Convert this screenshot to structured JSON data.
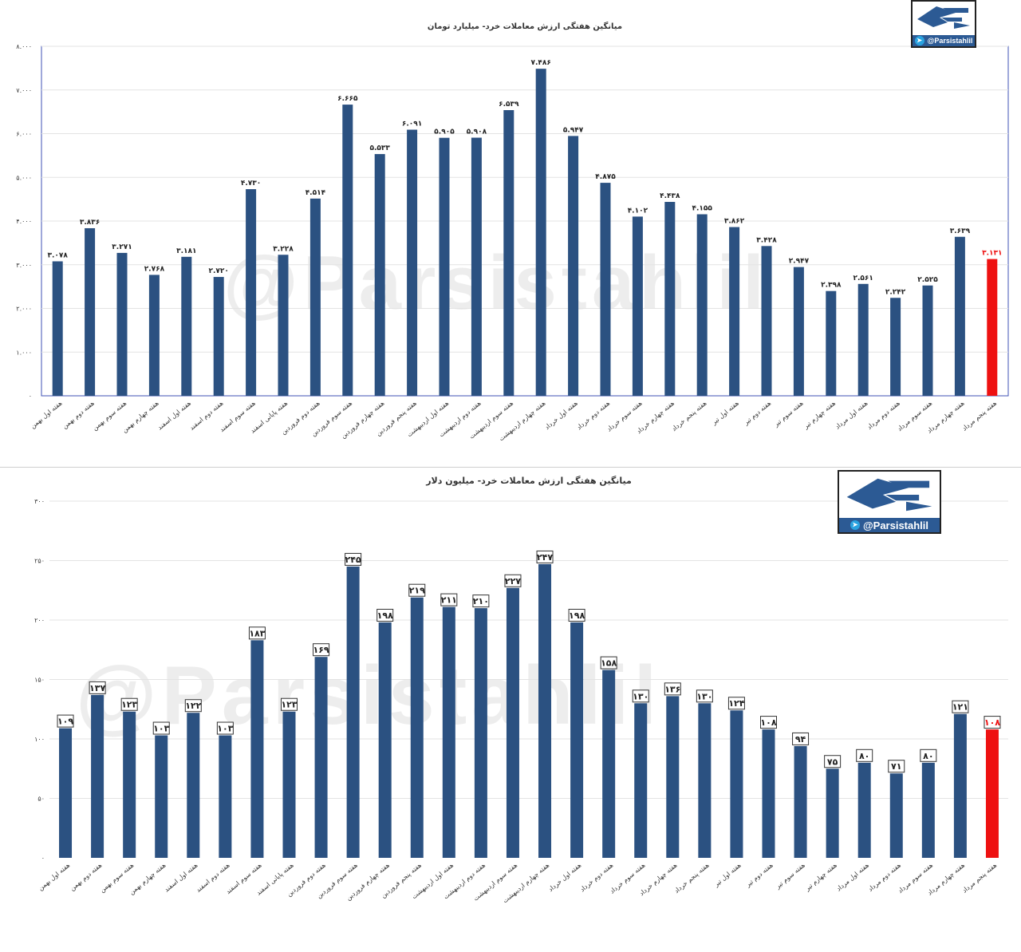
{
  "watermark": "@Parsistahlil",
  "logo": {
    "handle": "@Parsistahlil",
    "icon": "telegram-icon"
  },
  "colors": {
    "bar": "#2b5181",
    "highlight": "#ee1111",
    "grid": "#e3e3e3",
    "axis": "#3f51b5"
  },
  "chart_data": [
    {
      "type": "bar",
      "title": "میانگین هفتگی ارزش معاملات خرد- میلیارد تومان",
      "ylim": [
        0,
        8000
      ],
      "yticks": [
        0,
        1000,
        2000,
        3000,
        4000,
        5000,
        6000,
        7000,
        8000
      ],
      "ytick_labels": [
        "۰",
        "۱.۰۰۰",
        "۲.۰۰۰",
        "۳.۰۰۰",
        "۴.۰۰۰",
        "۵.۰۰۰",
        "۶.۰۰۰",
        "۷.۰۰۰",
        "۸.۰۰۰"
      ],
      "grid": true,
      "highlight_last": true,
      "categories": [
        "هفته اول بهمن",
        "هفته دوم بهمن",
        "هفته سوم بهمن",
        "هفته چهارم بهمن",
        "هفته اول اسفند",
        "هفته دوم اسفند",
        "هفته سوم اسفند",
        "هفته پایانی اسفند",
        "هفته دوم فروردین",
        "هفته سوم فروردین",
        "هفته چهارم فروردین",
        "هفته پنجم فروردین",
        "هفته اول اردیبهشت",
        "هفته دوم اردیبهشت",
        "هفته سوم اردیبهشت",
        "هفته چهارم اردیبهشت",
        "هفته اول خرداد",
        "هفته دوم خرداد",
        "هفته سوم خرداد",
        "هفته چهارم خرداد",
        "هفته پنجم خرداد",
        "هفته اول تیر",
        "هفته دوم تیر",
        "هفته سوم تیر",
        "هفته چهارم تیر",
        "هفته اول مرداد",
        "هفته دوم مرداد",
        "هفته سوم مرداد",
        "هفته چهارم مرداد",
        "هفته پنجم مرداد"
      ],
      "values": [
        3078,
        3836,
        3271,
        2768,
        3181,
        2720,
        4730,
        3228,
        4514,
        6665,
        5533,
        6091,
        5905,
        5908,
        6539,
        7486,
        5947,
        4875,
        4102,
        4438,
        4155,
        3862,
        3428,
        2947,
        2398,
        2561,
        2242,
        2525,
        3639,
        3131
      ],
      "data_labels": [
        "۳.۰۷۸",
        "۳.۸۳۶",
        "۳.۲۷۱",
        "۲.۷۶۸",
        "۳.۱۸۱",
        "۲.۷۲۰",
        "۴.۷۳۰",
        "۳.۲۲۸",
        "۴.۵۱۴",
        "۶.۶۶۵",
        "۵.۵۳۳",
        "۶.۰۹۱",
        "۵.۹۰۵",
        "۵.۹۰۸",
        "۶.۵۳۹",
        "۷.۴۸۶",
        "۵.۹۴۷",
        "۴.۸۷۵",
        "۴.۱۰۲",
        "۴.۴۳۸",
        "۴.۱۵۵",
        "۳.۸۶۲",
        "۳.۴۲۸",
        "۲.۹۴۷",
        "۲.۳۹۸",
        "۲.۵۶۱",
        "۲.۲۴۲",
        "۲.۵۲۵",
        "۳.۶۳۹",
        "۳.۱۳۱"
      ]
    },
    {
      "type": "bar",
      "title": "میانگین هفتگی ارزش معاملات خرد- میلیون دلار",
      "ylim": [
        0,
        300
      ],
      "yticks": [
        0,
        50,
        100,
        150,
        200,
        250,
        300
      ],
      "ytick_labels": [
        "۰",
        "۵۰",
        "۱۰۰",
        "۱۵۰",
        "۲۰۰",
        "۲۵۰",
        "۳۰۰"
      ],
      "grid": true,
      "highlight_last": true,
      "categories": [
        "هفته اول بهمن",
        "هفته دوم بهمن",
        "هفته سوم بهمن",
        "هفته چهارم بهمن",
        "هفته اول اسفند",
        "هفته دوم اسفند",
        "هفته سوم اسفند",
        "هفته پایانی اسفند",
        "هفته دوم فروردین",
        "هفته سوم فروردین",
        "هفته چهارم فروردین",
        "هفته پنجم فروردین",
        "هفته اول اردیبهشت",
        "هفته دوم اردیبهشت",
        "هفته سوم اردیبهشت",
        "هفته چهارم اردیبهشت",
        "هفته اول خرداد",
        "هفته دوم خرداد",
        "هفته سوم خرداد",
        "هفته چهارم خرداد",
        "هفته پنجم خرداد",
        "هفته اول تیر",
        "هفته دوم تیر",
        "هفته سوم تیر",
        "هفته چهارم تیر",
        "هفته اول مرداد",
        "هفته دوم مرداد",
        "هفته سوم مرداد",
        "هفته چهارم مرداد",
        "هفته پنجم مرداد"
      ],
      "values": [
        109,
        137,
        123,
        103,
        122,
        103,
        183,
        123,
        169,
        245,
        198,
        219,
        211,
        210,
        227,
        247,
        198,
        158,
        130,
        136,
        130,
        124,
        108,
        94,
        75,
        80,
        71,
        80,
        121,
        108
      ],
      "data_labels": [
        "۱۰۹",
        "۱۳۷",
        "۱۲۳",
        "۱۰۳",
        "۱۲۲",
        "۱۰۳",
        "۱۸۳",
        "۱۲۳",
        "۱۶۹",
        "۲۴۵",
        "۱۹۸",
        "۲۱۹",
        "۲۱۱",
        "۲۱۰",
        "۲۲۷",
        "۲۴۷",
        "۱۹۸",
        "۱۵۸",
        "۱۳۰",
        "۱۳۶",
        "۱۳۰",
        "۱۲۴",
        "۱۰۸",
        "۹۴",
        "۷۵",
        "۸۰",
        "۷۱",
        "۸۰",
        "۱۲۱",
        "۱۰۸"
      ]
    }
  ]
}
